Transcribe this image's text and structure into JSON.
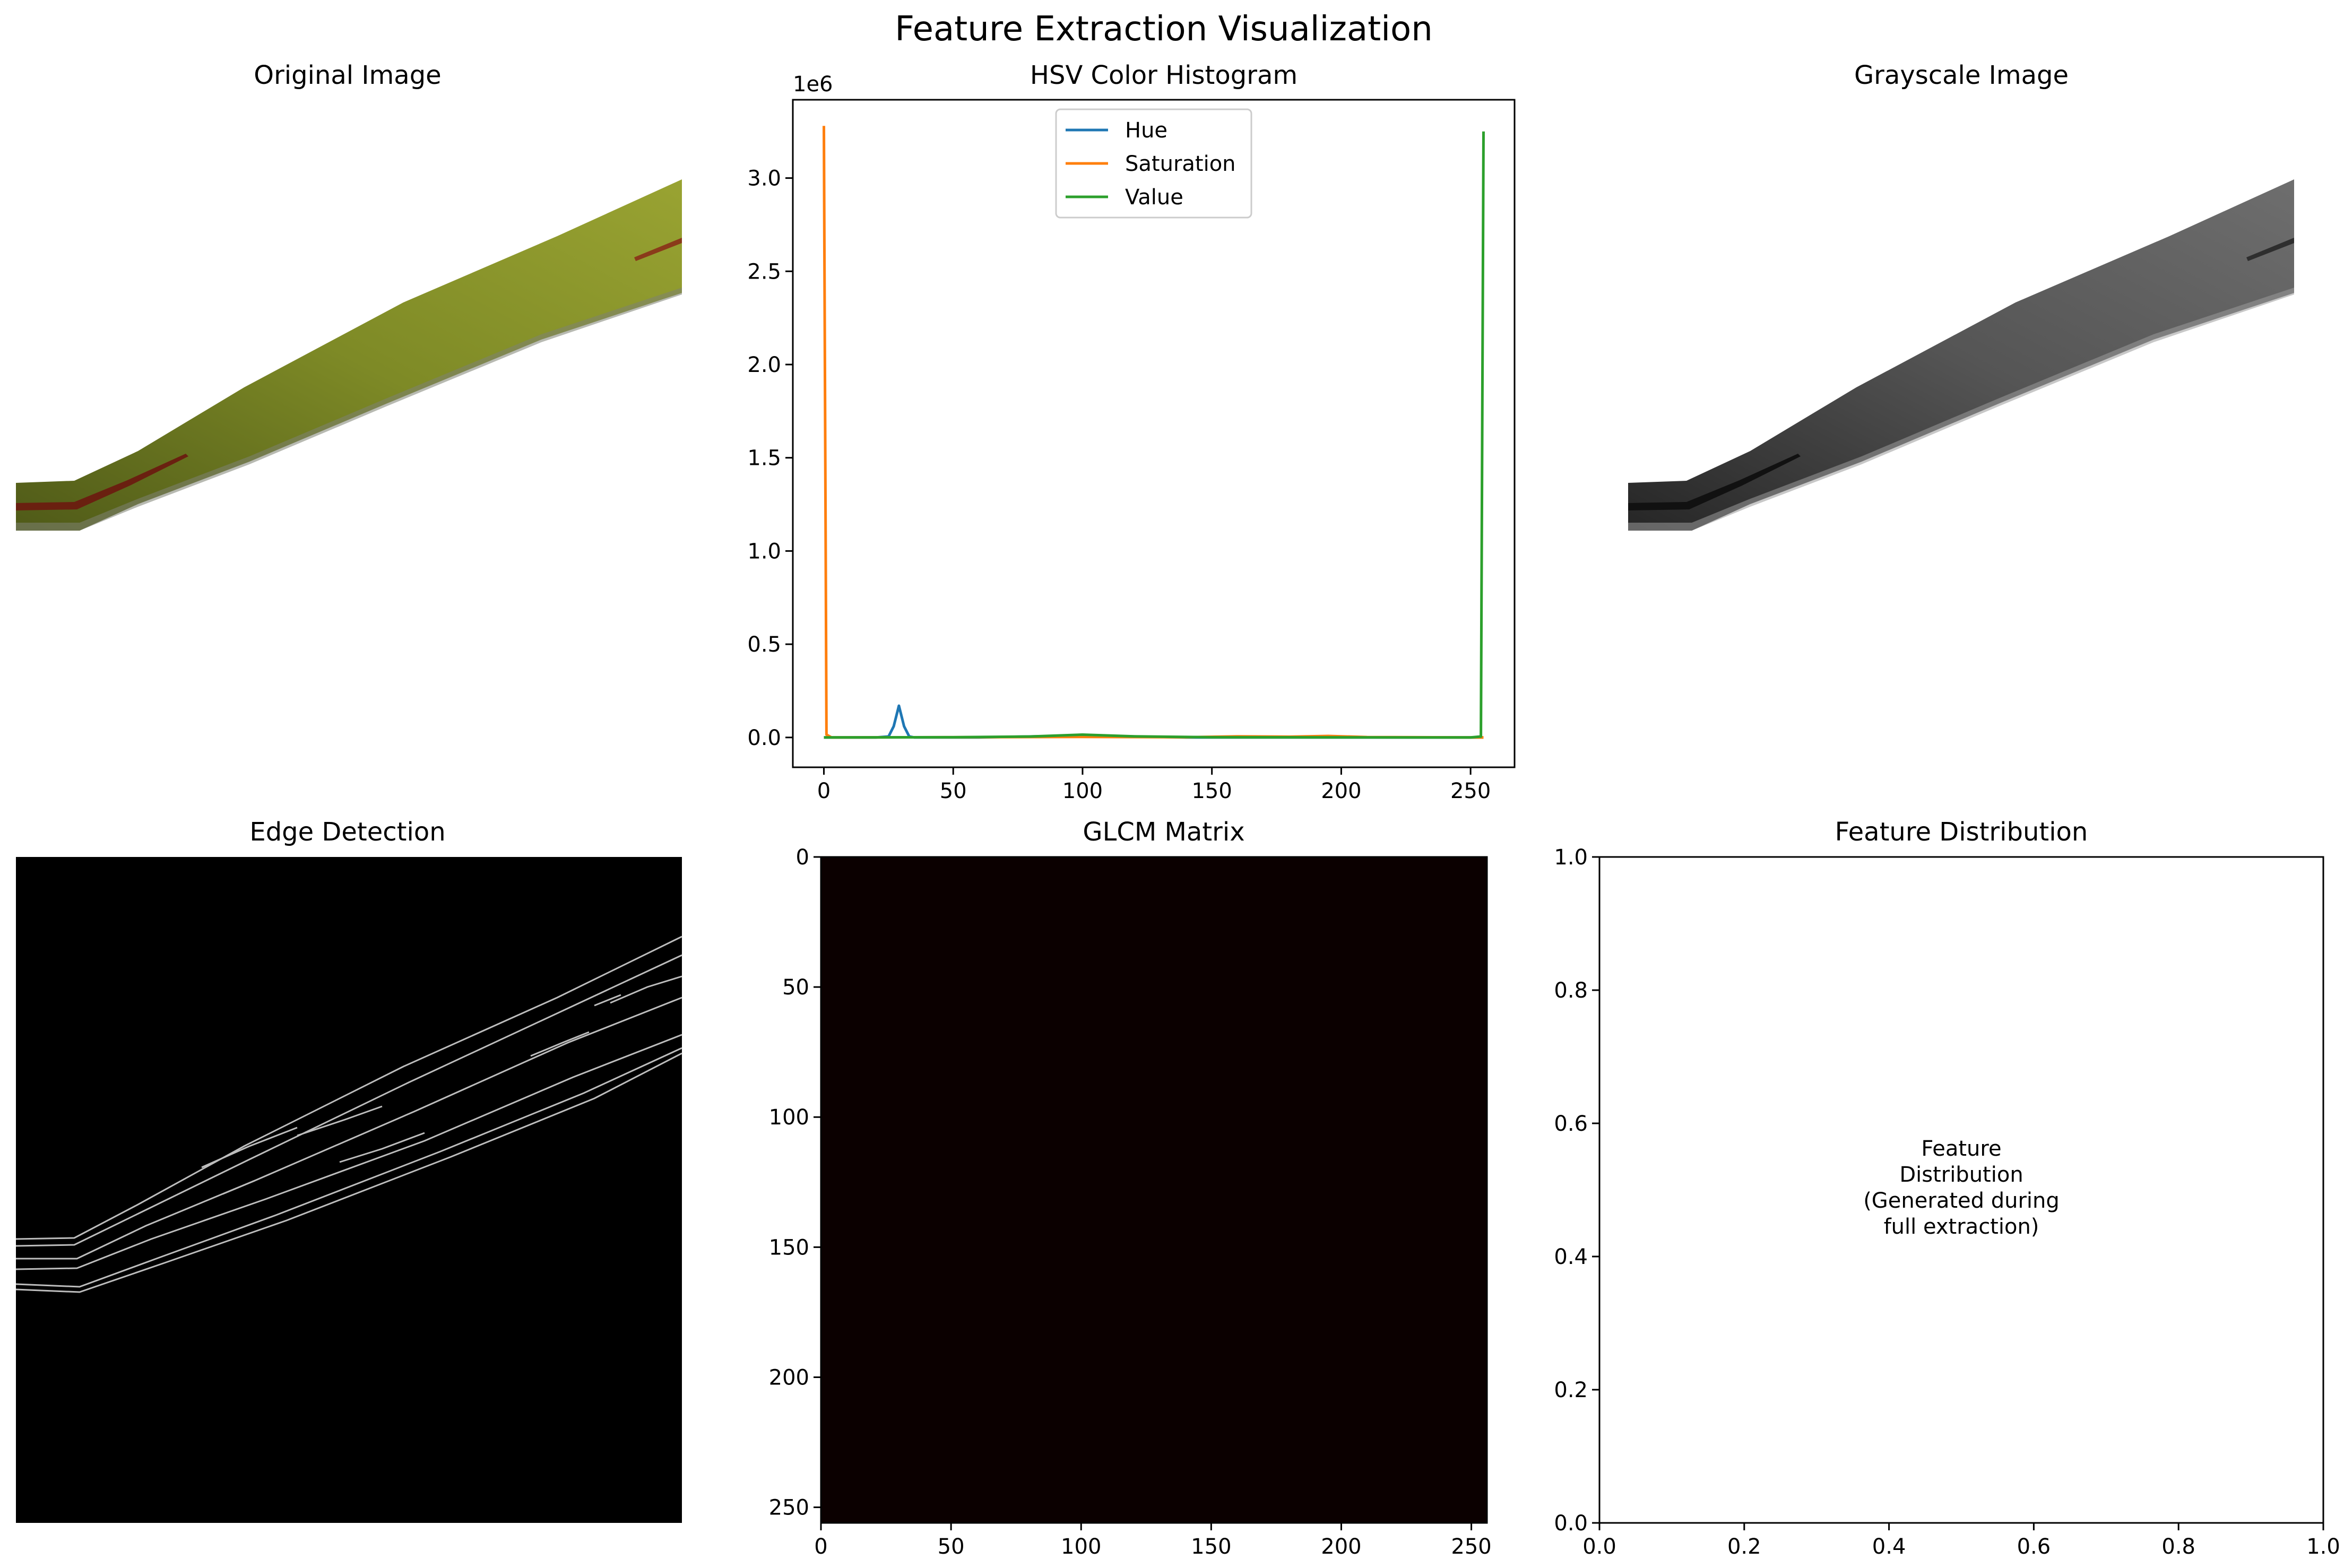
{
  "figure": {
    "suptitle": "Feature Extraction Visualization"
  },
  "panels": {
    "original": {
      "title": "Original Image"
    },
    "histogram": {
      "title": "HSV Color Histogram"
    },
    "grayscale": {
      "title": "Grayscale Image"
    },
    "edges": {
      "title": "Edge Detection"
    },
    "glcm": {
      "title": "GLCM Matrix"
    },
    "distribution": {
      "title": "Feature Distribution",
      "note_lines": [
        "Feature",
        "Distribution",
        "(Generated during",
        "full extraction)"
      ]
    }
  },
  "colors": {
    "hue": "#1f77b4",
    "saturation": "#ff7f0e",
    "value": "#2ca02c",
    "leaf_dark": "#5f6b1c",
    "leaf_light": "#8f9a2c",
    "lesion": "#7a2a10",
    "glcm_fill": "#0b0000"
  },
  "chart_data": [
    {
      "type": "line",
      "title": "HSV Color Histogram",
      "xlim": [
        -12,
        267
      ],
      "ylim": [
        -160000,
        3420000
      ],
      "y_multiplier_label": "1e6",
      "xticks": [
        0,
        50,
        100,
        150,
        200,
        250
      ],
      "yticks": [
        0,
        500000,
        1000000,
        1500000,
        2000000,
        2500000,
        3000000
      ],
      "ytick_labels": [
        "0.0",
        "0.5",
        "1.0",
        "1.5",
        "2.0",
        "2.5",
        "3.0"
      ],
      "legend": "upper-center",
      "series": [
        {
          "name": "Hue",
          "color": "#1f77b4",
          "points": [
            [
              0,
              0
            ],
            [
              20,
              0
            ],
            [
              25,
              5000
            ],
            [
              27,
              60000
            ],
            [
              29,
              170000
            ],
            [
              31,
              60000
            ],
            [
              33,
              5000
            ],
            [
              35,
              0
            ],
            [
              60,
              0
            ],
            [
              90,
              8000
            ],
            [
              100,
              14000
            ],
            [
              110,
              8000
            ],
            [
              140,
              0
            ],
            [
              200,
              0
            ],
            [
              255,
              0
            ]
          ]
        },
        {
          "name": "Saturation",
          "color": "#ff7f0e",
          "points": [
            [
              0,
              3280000
            ],
            [
              1,
              15000
            ],
            [
              3,
              0
            ],
            [
              50,
              1000
            ],
            [
              100,
              3000
            ],
            [
              140,
              1000
            ],
            [
              160,
              6000
            ],
            [
              180,
              4000
            ],
            [
              195,
              8000
            ],
            [
              210,
              2000
            ],
            [
              250,
              0
            ],
            [
              255,
              0
            ]
          ]
        },
        {
          "name": "Value",
          "color": "#2ca02c",
          "points": [
            [
              0,
              0
            ],
            [
              50,
              1000
            ],
            [
              80,
              5000
            ],
            [
              100,
              15000
            ],
            [
              120,
              6000
            ],
            [
              150,
              1000
            ],
            [
              250,
              0
            ],
            [
              254,
              5000
            ],
            [
              255,
              3250000
            ]
          ]
        }
      ]
    },
    {
      "type": "heatmap",
      "title": "GLCM Matrix",
      "xlim": [
        0,
        256
      ],
      "ylim": [
        256,
        0
      ],
      "xticks": [
        0,
        50,
        100,
        150,
        200,
        250
      ],
      "yticks": [
        0,
        50,
        100,
        150,
        200,
        250
      ],
      "fill": "#0b0000"
    },
    {
      "type": "scatter",
      "title": "Feature Distribution",
      "xlim": [
        0,
        1
      ],
      "ylim": [
        0,
        1
      ],
      "xticks": [
        0.0,
        0.2,
        0.4,
        0.6,
        0.8,
        1.0
      ],
      "yticks": [
        0.0,
        0.2,
        0.4,
        0.6,
        0.8,
        1.0
      ],
      "tick_labels": [
        "0.0",
        "0.2",
        "0.4",
        "0.6",
        "0.8",
        "1.0"
      ]
    }
  ]
}
